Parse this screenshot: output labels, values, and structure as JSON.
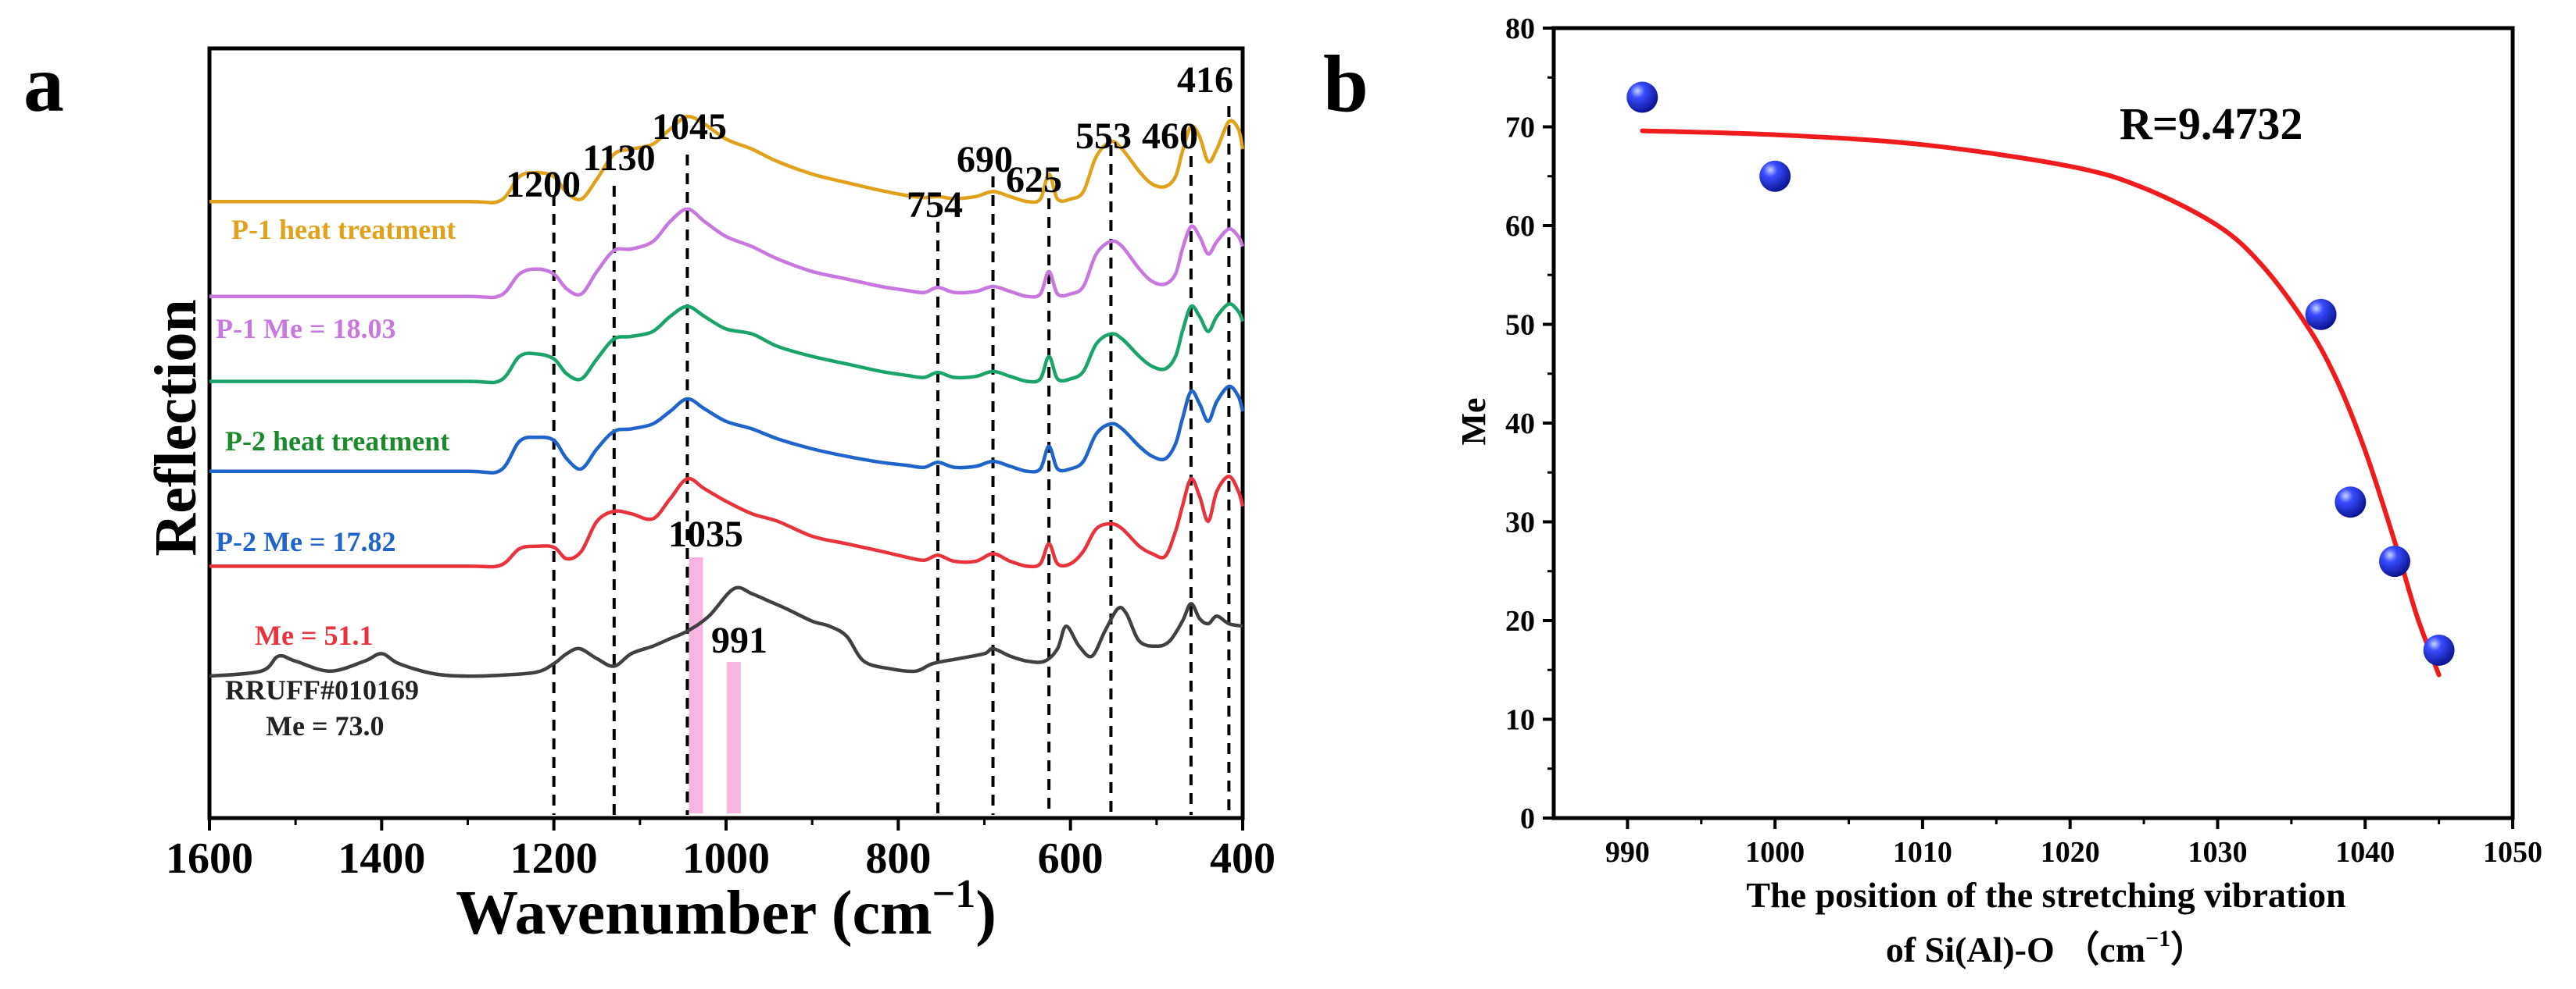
{
  "chart_data": [
    {
      "type": "line",
      "panel_label": "a",
      "xlabel": "Wavenumber (cm",
      "xlabel_sup": "−1",
      "xlabel_close": ")",
      "ylabel": "Reflection",
      "xlim": [
        1600,
        400
      ],
      "x_ticks": [
        1600,
        1400,
        1200,
        1000,
        800,
        600,
        400
      ],
      "x_tick_labels": [
        "1600",
        "1400",
        "1200",
        "1000",
        "800",
        "600",
        "400"
      ],
      "peak_lines": [
        {
          "x": 1200,
          "label": "1200"
        },
        {
          "x": 1130,
          "label": "1130"
        },
        {
          "x": 1045,
          "label": "1045"
        },
        {
          "x": 754,
          "label": "754"
        },
        {
          "x": 690,
          "label": "690"
        },
        {
          "x": 625,
          "label": "625"
        },
        {
          "x": 553,
          "label": "553"
        },
        {
          "x": 460,
          "label": "460"
        },
        {
          "x": 416,
          "label": "416"
        }
      ],
      "highlight_bands": [
        {
          "x": 1035,
          "label": "1035",
          "color": "#f7a8dc"
        },
        {
          "x": 991,
          "label": "991",
          "color": "#f7a8dc"
        }
      ],
      "series": [
        {
          "name": "P-1 heat treatment",
          "color": "#e0a11b",
          "offset": 6.2,
          "x": [
            1600,
            1420,
            1300,
            1262,
            1240,
            1220,
            1200,
            1185,
            1168,
            1150,
            1130,
            1110,
            1085,
            1065,
            1045,
            1025,
            1000,
            970,
            940,
            900,
            860,
            820,
            790,
            770,
            754,
            735,
            710,
            690,
            670,
            650,
            635,
            625,
            615,
            600,
            585,
            570,
            553,
            540,
            520,
            505,
            490,
            478,
            470,
            460,
            450,
            440,
            430,
            416,
            405,
            400
          ],
          "y": [
            0,
            0,
            0,
            0.02,
            0.5,
            0.58,
            0.5,
            0.18,
            0.05,
            0.45,
            0.95,
            1.05,
            1.15,
            1.45,
            1.7,
            1.55,
            1.25,
            1.05,
            0.8,
            0.55,
            0.38,
            0.22,
            0.12,
            0.08,
            0.1,
            0.06,
            0.1,
            0.2,
            0.1,
            0.0,
            0.05,
            0.55,
            0.05,
            0.05,
            0.2,
            0.9,
            1.2,
            1.05,
            0.6,
            0.35,
            0.3,
            0.5,
            1.0,
            1.5,
            1.3,
            0.8,
            1.05,
            1.6,
            1.45,
            1.05
          ]
        },
        {
          "name": "P-1 Me = 18.03",
          "color": "#c877df",
          "offset": 4.3,
          "x": [
            1600,
            1420,
            1300,
            1262,
            1240,
            1220,
            1200,
            1185,
            1168,
            1150,
            1130,
            1110,
            1085,
            1065,
            1045,
            1025,
            1000,
            970,
            940,
            900,
            860,
            820,
            790,
            770,
            754,
            735,
            710,
            690,
            670,
            650,
            635,
            625,
            615,
            600,
            585,
            570,
            553,
            540,
            520,
            505,
            490,
            478,
            470,
            460,
            450,
            440,
            430,
            416,
            405,
            400
          ],
          "y": [
            0,
            0,
            0,
            0.02,
            0.45,
            0.55,
            0.45,
            0.15,
            0.05,
            0.5,
            0.92,
            0.95,
            1.1,
            1.5,
            1.75,
            1.5,
            1.2,
            1.0,
            0.75,
            0.5,
            0.35,
            0.2,
            0.12,
            0.08,
            0.18,
            0.08,
            0.1,
            0.2,
            0.1,
            0.0,
            0.05,
            0.5,
            0.05,
            0.05,
            0.2,
            0.85,
            1.1,
            1.0,
            0.55,
            0.3,
            0.25,
            0.45,
            0.95,
            1.4,
            1.2,
            0.85,
            1.1,
            1.35,
            1.2,
            1.0
          ]
        },
        {
          "name": "P-2 heat treatment",
          "color": "#1aa36a",
          "offset": 2.6,
          "x": [
            1600,
            1420,
            1300,
            1262,
            1240,
            1220,
            1200,
            1185,
            1168,
            1150,
            1130,
            1110,
            1085,
            1065,
            1045,
            1025,
            1000,
            970,
            940,
            900,
            860,
            820,
            790,
            770,
            754,
            735,
            710,
            690,
            670,
            650,
            635,
            625,
            615,
            600,
            585,
            570,
            553,
            540,
            520,
            505,
            490,
            478,
            470,
            460,
            450,
            440,
            430,
            416,
            405,
            400
          ],
          "y": [
            0,
            0,
            0,
            0.02,
            0.5,
            0.55,
            0.45,
            0.15,
            0.05,
            0.45,
            0.85,
            0.9,
            1.0,
            1.3,
            1.5,
            1.3,
            1.05,
            0.95,
            0.7,
            0.5,
            0.35,
            0.2,
            0.12,
            0.08,
            0.18,
            0.08,
            0.1,
            0.2,
            0.1,
            0.0,
            0.05,
            0.5,
            0.05,
            0.05,
            0.2,
            0.75,
            0.95,
            0.85,
            0.5,
            0.3,
            0.25,
            0.5,
            1.0,
            1.5,
            1.3,
            1.0,
            1.3,
            1.55,
            1.4,
            1.2
          ]
        },
        {
          "name": "P-2 Me = 17.82",
          "color": "#1f64c8",
          "offset": 0.8,
          "x": [
            1600,
            1420,
            1300,
            1262,
            1240,
            1220,
            1200,
            1185,
            1168,
            1150,
            1130,
            1110,
            1085,
            1065,
            1045,
            1025,
            1000,
            970,
            940,
            900,
            860,
            820,
            790,
            770,
            754,
            735,
            710,
            690,
            670,
            650,
            635,
            625,
            615,
            600,
            585,
            570,
            553,
            540,
            520,
            505,
            490,
            478,
            470,
            460,
            450,
            440,
            430,
            416,
            405,
            400
          ],
          "y": [
            0,
            0,
            0,
            0.02,
            0.6,
            0.68,
            0.62,
            0.25,
            0.05,
            0.45,
            0.8,
            0.85,
            0.95,
            1.2,
            1.45,
            1.25,
            1.0,
            0.85,
            0.65,
            0.45,
            0.3,
            0.18,
            0.12,
            0.08,
            0.18,
            0.08,
            0.1,
            0.2,
            0.1,
            0.0,
            0.05,
            0.5,
            0.05,
            0.05,
            0.2,
            0.75,
            0.95,
            0.85,
            0.5,
            0.3,
            0.25,
            0.55,
            1.05,
            1.6,
            1.35,
            1.0,
            1.4,
            1.7,
            1.5,
            1.2
          ]
        },
        {
          "name": "Me = 51.1",
          "color": "#e8333c",
          "offset": -1.1,
          "x": [
            1600,
            1420,
            1300,
            1262,
            1240,
            1220,
            1200,
            1185,
            1168,
            1150,
            1130,
            1110,
            1085,
            1065,
            1045,
            1025,
            1000,
            970,
            940,
            900,
            860,
            820,
            790,
            770,
            754,
            735,
            710,
            690,
            670,
            650,
            635,
            625,
            615,
            600,
            585,
            570,
            553,
            540,
            520,
            505,
            490,
            478,
            470,
            460,
            450,
            440,
            430,
            416,
            405,
            400
          ],
          "y": [
            0,
            0,
            0,
            0.02,
            0.35,
            0.4,
            0.38,
            0.15,
            0.3,
            0.9,
            1.1,
            1.05,
            0.95,
            1.35,
            1.75,
            1.55,
            1.3,
            1.05,
            0.9,
            0.6,
            0.45,
            0.3,
            0.18,
            0.12,
            0.22,
            0.1,
            0.1,
            0.25,
            0.1,
            0.0,
            0.05,
            0.45,
            0.05,
            0.05,
            0.3,
            0.75,
            0.85,
            0.75,
            0.4,
            0.25,
            0.2,
            0.7,
            1.2,
            1.75,
            1.4,
            0.9,
            1.5,
            1.8,
            1.5,
            1.2
          ]
        },
        {
          "name": "RRUFF#010169 Me = 73.0",
          "color": "#404040",
          "offset": -3.3,
          "x": [
            1600,
            1540,
            1520,
            1500,
            1460,
            1420,
            1400,
            1380,
            1340,
            1300,
            1260,
            1220,
            1200,
            1185,
            1170,
            1150,
            1130,
            1110,
            1085,
            1065,
            1045,
            1020,
            991,
            970,
            950,
            930,
            900,
            880,
            860,
            840,
            810,
            780,
            760,
            730,
            700,
            690,
            670,
            650,
            630,
            615,
            605,
            590,
            575,
            560,
            545,
            535,
            520,
            500,
            485,
            470,
            460,
            450,
            440,
            430,
            416,
            400
          ],
          "y": [
            0,
            0.1,
            0.4,
            0.3,
            0.1,
            0.3,
            0.45,
            0.25,
            0.05,
            0.0,
            0.02,
            0.08,
            0.25,
            0.45,
            0.55,
            0.35,
            0.2,
            0.45,
            0.6,
            0.75,
            0.9,
            1.2,
            1.75,
            1.65,
            1.5,
            1.35,
            1.1,
            1.0,
            0.8,
            0.3,
            0.15,
            0.1,
            0.25,
            0.35,
            0.45,
            0.55,
            0.4,
            0.3,
            0.3,
            0.55,
            1.0,
            0.6,
            0.4,
            0.9,
            1.35,
            1.25,
            0.7,
            0.6,
            0.7,
            1.1,
            1.45,
            1.15,
            1.05,
            1.2,
            1.05,
            1.0
          ]
        }
      ]
    },
    {
      "type": "scatter",
      "panel_label": "b",
      "xlabel_line1": "The position of the stretching vibration",
      "xlabel_line2": "of Si(Al)-O （cm",
      "xlabel_sup": "−1",
      "xlabel_close": "）",
      "ylabel": "Me",
      "xlim": [
        985,
        1050
      ],
      "ylim": [
        0,
        80
      ],
      "x_ticks": [
        990,
        1000,
        1010,
        1020,
        1030,
        1040,
        1050
      ],
      "x_tick_labels": [
        "990",
        "1000",
        "1010",
        "1020",
        "1030",
        "1040",
        "1050"
      ],
      "y_ticks": [
        0,
        10,
        20,
        30,
        40,
        50,
        60,
        70,
        80
      ],
      "y_tick_labels": [
        "0",
        "10",
        "20",
        "30",
        "40",
        "50",
        "60",
        "70",
        "80"
      ],
      "annotation": "R=9.4732",
      "points": {
        "x": [
          991,
          1000,
          1037,
          1039,
          1042,
          1045
        ],
        "y": [
          73,
          65,
          51,
          32,
          26,
          17
        ]
      },
      "fit_curve": {
        "color": "#ee1c1c",
        "x": [
          991,
          1000,
          1010,
          1020,
          1025,
          1030,
          1033,
          1036,
          1038,
          1040,
          1042,
          1043.5,
          1045
        ],
        "y": [
          69.6,
          69.2,
          68.2,
          66.0,
          63.8,
          60.0,
          56.0,
          50.0,
          44.6,
          37.2,
          28.0,
          20.5,
          14.5
        ]
      }
    }
  ]
}
